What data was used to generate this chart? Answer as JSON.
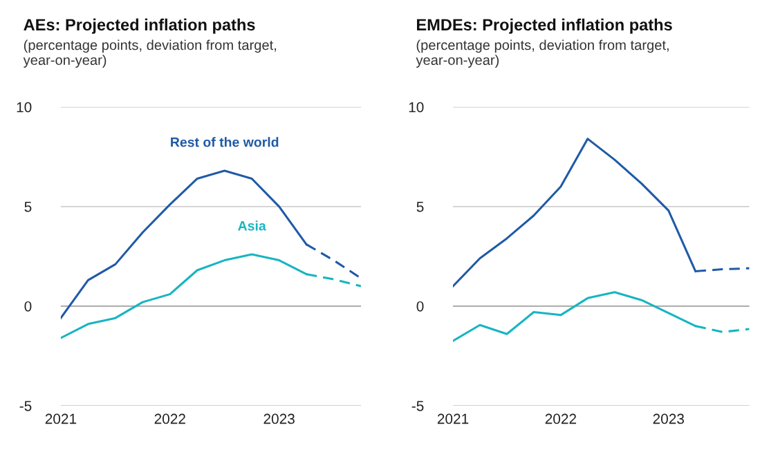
{
  "chart_data": [
    {
      "type": "line",
      "title": "AEs: Projected inflation paths",
      "subtitle": "(percentage points, deviation from target,\nyear-on-year)",
      "xlim": [
        2021,
        2023.75
      ],
      "xticks": [
        2021,
        2022,
        2023
      ],
      "ylim": [
        -5,
        10
      ],
      "yticks": [
        -5,
        0,
        5,
        10
      ],
      "grid": "y",
      "legend": false,
      "ref_lines": [
        {
          "axis": "y",
          "value": 0,
          "color": "#a6a6a6"
        }
      ],
      "series": [
        {
          "name": "Rest of the world",
          "color": "#1f5aa6",
          "line_style": "solid",
          "x": [
            2021,
            2021.25,
            2021.5,
            2021.75,
            2022,
            2022.25,
            2022.5,
            2022.75,
            2023,
            2023.25
          ],
          "values": [
            -0.6,
            1.3,
            2.1,
            3.7,
            5.1,
            6.4,
            6.8,
            6.4,
            5.0,
            3.1
          ]
        },
        {
          "color": "#1f5aa6",
          "line_style": "dashed",
          "x": [
            2023.25,
            2023.5,
            2023.75
          ],
          "values": [
            3.1,
            2.3,
            1.4
          ]
        },
        {
          "name": "Asia",
          "color": "#17b5c0",
          "line_style": "solid",
          "x": [
            2021,
            2021.25,
            2021.5,
            2021.75,
            2022,
            2022.25,
            2022.5,
            2022.75,
            2023,
            2023.25
          ],
          "values": [
            -1.6,
            -0.9,
            -0.6,
            0.2,
            0.6,
            1.8,
            2.3,
            2.6,
            2.3,
            1.6
          ]
        },
        {
          "color": "#17b5c0",
          "line_style": "dashed",
          "x": [
            2023.25,
            2023.5,
            2023.75
          ],
          "values": [
            1.6,
            1.35,
            1.0
          ]
        }
      ]
    },
    {
      "type": "line",
      "title": "EMDEs: Projected inflation paths",
      "subtitle": "(percentage points, deviation from target,\nyear-on-year)",
      "xlim": [
        2021,
        2023.75
      ],
      "xticks": [
        2021,
        2022,
        2023
      ],
      "ylim": [
        -5,
        10
      ],
      "yticks": [
        -5,
        0,
        5,
        10
      ],
      "grid": "y",
      "legend": false,
      "ref_lines": [
        {
          "axis": "y",
          "value": 0,
          "color": "#a6a6a6"
        }
      ],
      "series": [
        {
          "color": "#1f5aa6",
          "line_style": "solid",
          "x": [
            2021,
            2021.25,
            2021.5,
            2021.75,
            2022,
            2022.25,
            2022.5,
            2022.75,
            2023,
            2023.25
          ],
          "values": [
            1.0,
            2.4,
            3.4,
            4.55,
            6.0,
            8.4,
            7.35,
            6.15,
            4.8,
            1.75
          ]
        },
        {
          "color": "#1f5aa6",
          "line_style": "dashed",
          "x": [
            2023.25,
            2023.5,
            2023.75
          ],
          "values": [
            1.75,
            1.85,
            1.9
          ]
        },
        {
          "color": "#17b5c0",
          "line_style": "solid",
          "x": [
            2021,
            2021.25,
            2021.5,
            2021.75,
            2022,
            2022.25,
            2022.5,
            2022.75,
            2023,
            2023.25
          ],
          "values": [
            -1.75,
            -0.95,
            -1.4,
            -0.3,
            -0.45,
            0.4,
            0.7,
            0.3,
            -0.35,
            -1.0
          ]
        },
        {
          "color": "#17b5c0",
          "line_style": "dashed",
          "x": [
            2023.25,
            2023.5,
            2023.75
          ],
          "values": [
            -1.0,
            -1.3,
            -1.15
          ]
        }
      ]
    }
  ]
}
